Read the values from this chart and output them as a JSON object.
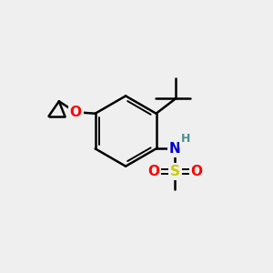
{
  "background_color": "#efefef",
  "bond_color": "#000000",
  "atom_colors": {
    "O": "#ff0000",
    "N": "#0000cc",
    "H": "#4a9090",
    "S": "#cccc00",
    "C": "#000000"
  },
  "figsize": [
    3.0,
    3.0
  ],
  "dpi": 100,
  "xlim": [
    0,
    10
  ],
  "ylim": [
    0,
    10
  ]
}
